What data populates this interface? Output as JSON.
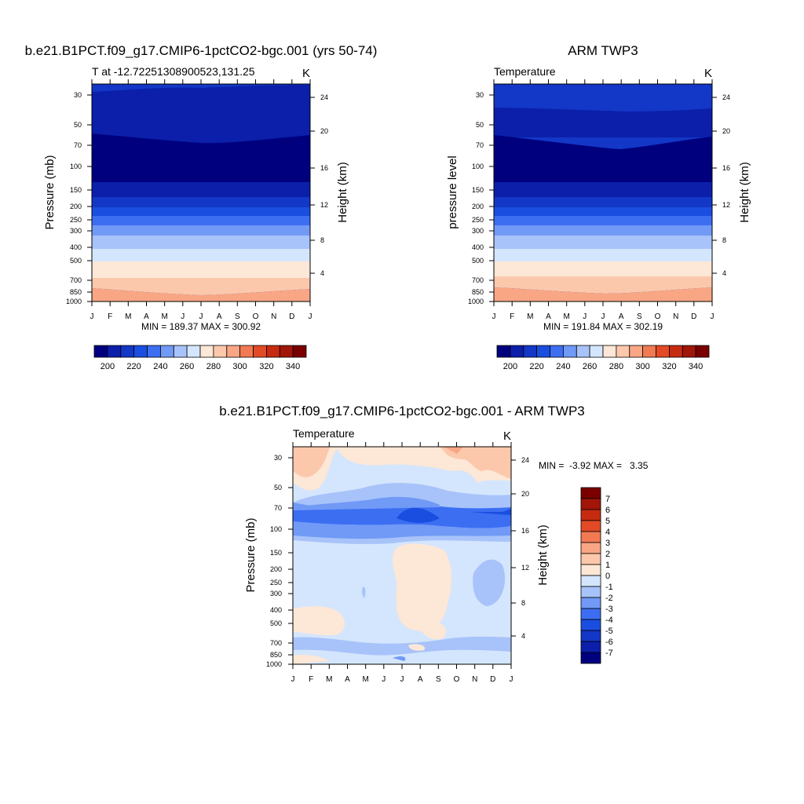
{
  "chart_data": [
    {
      "type": "heatmap",
      "title": "b.e21.B1PCT.f09_g17.CMIP6-1pctCO2-bgc.001 (yrs 50-74)",
      "subtitle": "T at -12.72251308900523,131.25",
      "units": "K",
      "ylabel": "Pressure (mb)",
      "y2label": "Height (km)",
      "x": [
        "J",
        "F",
        "M",
        "A",
        "M",
        "J",
        "J",
        "A",
        "S",
        "O",
        "N",
        "D",
        "J"
      ],
      "pressure_ticks": [
        30,
        50,
        70,
        100,
        150,
        200,
        250,
        300,
        400,
        500,
        700,
        850,
        1000
      ],
      "height_ticks": [
        24,
        20,
        16,
        12,
        8,
        4
      ],
      "stats": "MIN = 189.37 MAX = 300.92",
      "min": 189.37,
      "max": 300.92,
      "colorbar_labels": [
        "200",
        "220",
        "240",
        "260",
        "280",
        "300",
        "320",
        "340"
      ],
      "levels": [
        190,
        200,
        210,
        220,
        230,
        240,
        250,
        260,
        270,
        280,
        290,
        300,
        310,
        320,
        330,
        340,
        350
      ]
    },
    {
      "type": "heatmap",
      "title": "ARM TWP3",
      "subtitle": "Temperature",
      "units": "K",
      "ylabel": "pressure level",
      "y2label": "Height (km)",
      "x": [
        "J",
        "F",
        "M",
        "A",
        "M",
        "J",
        "J",
        "A",
        "S",
        "O",
        "N",
        "D",
        "J"
      ],
      "pressure_ticks": [
        30,
        50,
        70,
        100,
        150,
        200,
        250,
        300,
        400,
        500,
        700,
        850,
        1000
      ],
      "height_ticks": [
        24,
        20,
        16,
        12,
        8,
        4
      ],
      "stats": "MIN = 191.84 MAX = 302.19",
      "min": 191.84,
      "max": 302.19,
      "colorbar_labels": [
        "200",
        "220",
        "240",
        "260",
        "280",
        "300",
        "320",
        "340"
      ],
      "levels": [
        190,
        200,
        210,
        220,
        230,
        240,
        250,
        260,
        270,
        280,
        290,
        300,
        310,
        320,
        330,
        340,
        350
      ]
    },
    {
      "type": "heatmap",
      "title": "b.e21.B1PCT.f09_g17.CMIP6-1pctCO2-bgc.001 - ARM TWP3",
      "subtitle": "Temperature",
      "units": "K",
      "ylabel": "Pressure (mb)",
      "y2label": "Height (km)",
      "x": [
        "J",
        "F",
        "M",
        "A",
        "M",
        "J",
        "J",
        "A",
        "S",
        "O",
        "N",
        "D",
        "J"
      ],
      "pressure_ticks": [
        30,
        50,
        70,
        100,
        150,
        200,
        250,
        300,
        400,
        500,
        700,
        850,
        1000
      ],
      "height_ticks": [
        24,
        20,
        16,
        12,
        8,
        4
      ],
      "stats": "MIN =  -3.92 MAX =   3.35",
      "min": -3.92,
      "max": 3.35,
      "colorbar_labels": [
        "7",
        "6",
        "5",
        "4",
        "3",
        "2",
        "1",
        "0",
        "-1",
        "-2",
        "-3",
        "-4",
        "-5",
        "-6",
        "-7"
      ]
    }
  ],
  "colors": {
    "temperature_scale": [
      "#00007f",
      "#0b1faa",
      "#1337c6",
      "#1a4ee0",
      "#3c6ef2",
      "#7199f6",
      "#a8c3fa",
      "#d4e6fd",
      "#fde7d6",
      "#fcc8ac",
      "#f9a684",
      "#f17a53",
      "#e24b26",
      "#c62b10",
      "#a11608",
      "#7a0000"
    ],
    "difference_scale": [
      "#7a0000",
      "#a11608",
      "#c62b10",
      "#e24b26",
      "#f17a53",
      "#f9a684",
      "#fcc8ac",
      "#fde7d6",
      "#d4e6fd",
      "#a8c3fa",
      "#7199f6",
      "#3c6ef2",
      "#1a4ee0",
      "#1337c6",
      "#0b1faa",
      "#00007f"
    ]
  }
}
